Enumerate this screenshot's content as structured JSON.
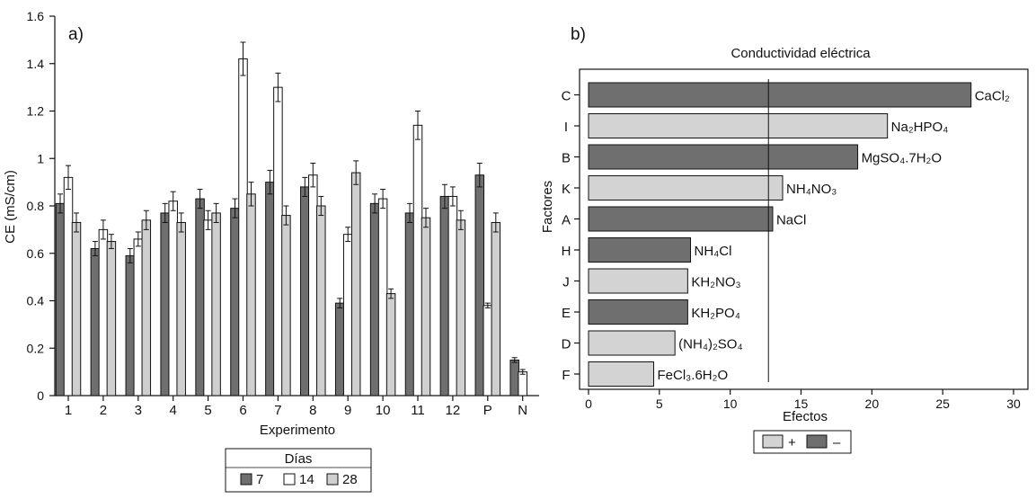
{
  "chart_data": [
    {
      "panel_label": "a)",
      "type": "bar",
      "title": "",
      "xlabel": "Experimento",
      "ylabel": "CE (mS/cm)",
      "ylim": [
        0,
        1.6
      ],
      "yticks": [
        0,
        0.2,
        0.4,
        0.6,
        0.8,
        1,
        1.2,
        1.4,
        1.6
      ],
      "ytick_labels": [
        "0",
        "0.2",
        "0.4",
        "0.6",
        "0.8",
        "1",
        "1.2",
        "1.4",
        "1.6"
      ],
      "categories": [
        "1",
        "2",
        "3",
        "4",
        "5",
        "6",
        "7",
        "8",
        "9",
        "10",
        "11",
        "12",
        "P",
        "N"
      ],
      "legend_title": "Días",
      "legend_position": "bottom",
      "series": [
        {
          "name": "7",
          "color": "#6f6f6f",
          "values": [
            0.81,
            0.62,
            0.59,
            0.77,
            0.83,
            0.79,
            0.9,
            0.88,
            0.39,
            0.81,
            0.77,
            0.84,
            0.93,
            0.15
          ],
          "errors": [
            0.04,
            0.03,
            0.03,
            0.04,
            0.04,
            0.04,
            0.05,
            0.04,
            0.02,
            0.04,
            0.04,
            0.05,
            0.05,
            0.01
          ]
        },
        {
          "name": "14",
          "color": "#ffffff",
          "values": [
            0.92,
            0.7,
            0.66,
            0.82,
            0.74,
            1.42,
            1.3,
            0.93,
            0.68,
            0.83,
            1.14,
            0.84,
            0.38,
            0.1
          ],
          "errors": [
            0.05,
            0.04,
            0.03,
            0.04,
            0.04,
            0.07,
            0.06,
            0.05,
            0.03,
            0.04,
            0.06,
            0.04,
            0.01,
            0.01
          ]
        },
        {
          "name": "28",
          "color": "#cfcfcf",
          "values": [
            0.73,
            0.65,
            0.74,
            0.73,
            0.77,
            0.85,
            0.76,
            0.8,
            0.94,
            0.43,
            0.75,
            0.74,
            0.73,
            0.0
          ],
          "errors": [
            0.04,
            0.03,
            0.04,
            0.04,
            0.04,
            0.05,
            0.04,
            0.04,
            0.05,
            0.02,
            0.04,
            0.04,
            0.04,
            0.0
          ]
        }
      ]
    },
    {
      "panel_label": "b)",
      "type": "bar",
      "orientation": "horizontal",
      "title": "Conductividad eléctrica",
      "xlabel": "Efectos",
      "ylabel": "Factores",
      "xlim": [
        0,
        30
      ],
      "xticks": [
        0,
        5,
        10,
        15,
        20,
        25,
        30
      ],
      "xtick_labels": [
        "0",
        "5",
        "10",
        "15",
        "20",
        "25",
        "30"
      ],
      "reference_line": 12.7,
      "legend_position": "bottom",
      "legend": [
        {
          "label": "+",
          "color": "#d3d3d3"
        },
        {
          "label": "–",
          "color": "#6f6f6f"
        }
      ],
      "bars": [
        {
          "factor": "C",
          "value": 27.0,
          "sign": "–",
          "compound": "CaCl₂"
        },
        {
          "factor": "I",
          "value": 21.1,
          "sign": "+",
          "compound": "Na₂HPO₄"
        },
        {
          "factor": "B",
          "value": 19.0,
          "sign": "–",
          "compound": "MgSO₄.7H₂O"
        },
        {
          "factor": "K",
          "value": 13.7,
          "sign": "+",
          "compound": "NH₄NO₃"
        },
        {
          "factor": "A",
          "value": 13.0,
          "sign": "–",
          "compound": "NaCl"
        },
        {
          "factor": "H",
          "value": 7.2,
          "sign": "–",
          "compound": "NH₄Cl"
        },
        {
          "factor": "J",
          "value": 7.0,
          "sign": "+",
          "compound": "KH₂NO₃"
        },
        {
          "factor": "E",
          "value": 7.0,
          "sign": "–",
          "compound": "KH₂PO₄"
        },
        {
          "factor": "D",
          "value": 6.1,
          "sign": "+",
          "compound": "(NH₄)₂SO₄"
        },
        {
          "factor": "F",
          "value": 4.6,
          "sign": "+",
          "compound": "FeCl₃.6H₂O"
        }
      ]
    }
  ]
}
